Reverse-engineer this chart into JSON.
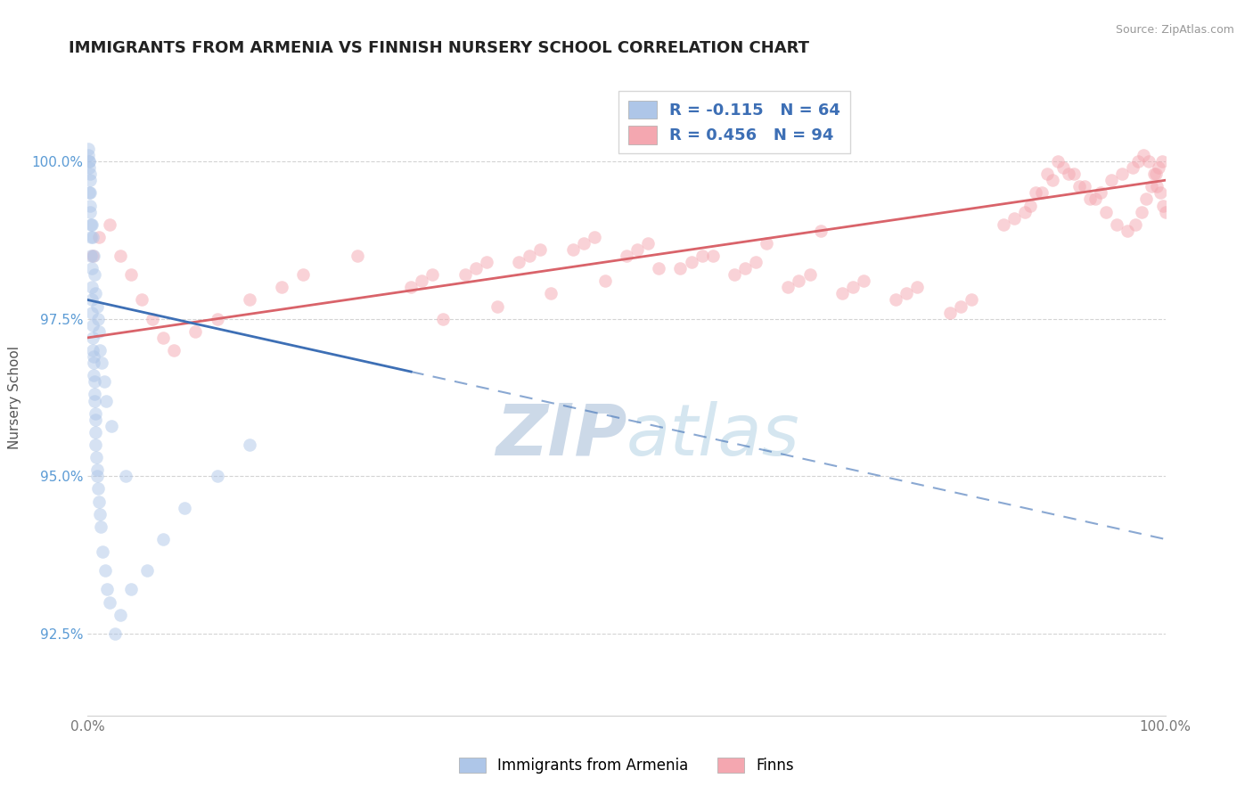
{
  "title": "IMMIGRANTS FROM ARMENIA VS FINNISH NURSERY SCHOOL CORRELATION CHART",
  "source": "Source: ZipAtlas.com",
  "ylabel": "Nursery School",
  "ytick_labels": [
    "92.5%",
    "95.0%",
    "97.5%",
    "100.0%"
  ],
  "ytick_values": [
    92.5,
    95.0,
    97.5,
    100.0
  ],
  "xlim": [
    0.0,
    100.0
  ],
  "ylim": [
    91.2,
    101.3
  ],
  "legend_labels": [
    "R = -0.115   N = 64",
    "R = 0.456   N = 94"
  ],
  "armenia_scatter_x": [
    0.05,
    0.08,
    0.1,
    0.12,
    0.15,
    0.18,
    0.2,
    0.22,
    0.25,
    0.28,
    0.3,
    0.32,
    0.35,
    0.38,
    0.4,
    0.42,
    0.45,
    0.48,
    0.5,
    0.52,
    0.55,
    0.58,
    0.6,
    0.62,
    0.65,
    0.68,
    0.7,
    0.72,
    0.75,
    0.8,
    0.85,
    0.9,
    0.95,
    1.0,
    1.1,
    1.2,
    1.4,
    1.6,
    1.8,
    2.0,
    2.5,
    3.0,
    4.0,
    5.5,
    7.0,
    9.0,
    12.0,
    15.0,
    0.15,
    0.25,
    0.35,
    0.45,
    0.55,
    0.65,
    0.75,
    0.85,
    0.95,
    1.05,
    1.15,
    1.3,
    1.5,
    1.7,
    2.2,
    3.5
  ],
  "armenia_scatter_y": [
    100.2,
    100.1,
    100.0,
    99.9,
    100.0,
    99.8,
    99.7,
    99.5,
    99.2,
    99.0,
    98.8,
    98.5,
    98.3,
    98.0,
    97.8,
    97.6,
    97.4,
    97.2,
    97.0,
    96.9,
    96.8,
    96.6,
    96.5,
    96.3,
    96.2,
    96.0,
    95.9,
    95.7,
    95.5,
    95.3,
    95.1,
    95.0,
    94.8,
    94.6,
    94.4,
    94.2,
    93.8,
    93.5,
    93.2,
    93.0,
    92.5,
    92.8,
    93.2,
    93.5,
    94.0,
    94.5,
    95.0,
    95.5,
    99.5,
    99.3,
    99.0,
    98.8,
    98.5,
    98.2,
    97.9,
    97.7,
    97.5,
    97.3,
    97.0,
    96.8,
    96.5,
    96.2,
    95.8,
    95.0
  ],
  "finns_scatter_x": [
    0.5,
    1.0,
    2.0,
    3.0,
    4.0,
    5.0,
    6.0,
    7.0,
    8.0,
    10.0,
    12.0,
    15.0,
    18.0,
    20.0,
    25.0,
    85.0,
    87.0,
    88.0,
    89.0,
    90.0,
    91.0,
    92.0,
    93.0,
    94.0,
    95.0,
    96.0,
    97.0,
    97.5,
    98.0,
    98.5,
    99.0,
    99.2,
    99.5,
    99.8,
    100.0,
    86.0,
    87.5,
    88.5,
    89.5,
    90.5,
    91.5,
    92.5,
    93.5,
    94.5,
    95.5,
    96.5,
    97.2,
    97.8,
    98.2,
    98.7,
    99.1,
    99.4,
    99.7,
    30.0,
    35.0,
    40.0,
    45.0,
    50.0,
    55.0,
    60.0,
    65.0,
    70.0,
    75.0,
    80.0,
    31.0,
    36.0,
    41.0,
    46.0,
    51.0,
    56.0,
    61.0,
    66.0,
    71.0,
    76.0,
    81.0,
    32.0,
    37.0,
    42.0,
    47.0,
    52.0,
    57.0,
    62.0,
    67.0,
    72.0,
    77.0,
    82.0,
    33.0,
    38.0,
    43.0,
    48.0,
    53.0,
    58.0,
    63.0,
    68.0
  ],
  "finns_scatter_y": [
    98.5,
    98.8,
    99.0,
    98.5,
    98.2,
    97.8,
    97.5,
    97.2,
    97.0,
    97.3,
    97.5,
    97.8,
    98.0,
    98.2,
    98.5,
    99.0,
    99.2,
    99.5,
    99.8,
    100.0,
    99.8,
    99.6,
    99.4,
    99.5,
    99.7,
    99.8,
    99.9,
    100.0,
    100.1,
    100.0,
    99.8,
    99.6,
    99.5,
    99.3,
    99.2,
    99.1,
    99.3,
    99.5,
    99.7,
    99.9,
    99.8,
    99.6,
    99.4,
    99.2,
    99.0,
    98.9,
    99.0,
    99.2,
    99.4,
    99.6,
    99.8,
    99.9,
    100.0,
    98.0,
    98.2,
    98.4,
    98.6,
    98.5,
    98.3,
    98.2,
    98.0,
    97.9,
    97.8,
    97.6,
    98.1,
    98.3,
    98.5,
    98.7,
    98.6,
    98.4,
    98.3,
    98.1,
    98.0,
    97.9,
    97.7,
    98.2,
    98.4,
    98.6,
    98.8,
    98.7,
    98.5,
    98.4,
    98.2,
    98.1,
    98.0,
    97.8,
    97.5,
    97.7,
    97.9,
    98.1,
    98.3,
    98.5,
    98.7,
    98.9
  ],
  "blue_trend_x0": 0.0,
  "blue_trend_x1": 100.0,
  "blue_trend_y0": 97.8,
  "blue_trend_y1": 94.0,
  "blue_solid_x1": 30.0,
  "pink_trend_x0": 0.0,
  "pink_trend_x1": 100.0,
  "pink_trend_y0": 97.2,
  "pink_trend_y1": 99.7,
  "scatter_alpha": 0.5,
  "scatter_size": 110,
  "blue_color": "#aec6e8",
  "pink_color": "#f4a7b0",
  "blue_line_color": "#3d6fb5",
  "pink_line_color": "#d9636a",
  "axis_color": "#5b9bd5",
  "grid_color": "#d0d0d0",
  "title_color": "#222222",
  "watermark_zip": "ZIP",
  "watermark_atlas": "atlas",
  "watermark_color": "#ccd9e8",
  "background_color": "#ffffff"
}
